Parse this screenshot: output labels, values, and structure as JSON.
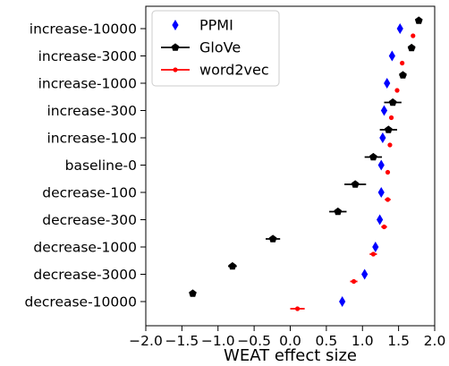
{
  "chart_data": {
    "type": "scatter",
    "xlabel": "WEAT effect size",
    "ylabel": "",
    "xlim": [
      -2.0,
      2.0
    ],
    "xticks": [
      "−2.0",
      "−1.5",
      "−1.0",
      "−0.5",
      "0.0",
      "0.5",
      "1.0",
      "1.5",
      "2.0"
    ],
    "xtick_values": [
      -2.0,
      -1.5,
      -1.0,
      -0.5,
      0.0,
      0.5,
      1.0,
      1.5,
      2.0
    ],
    "categories": [
      "increase-10000",
      "increase-3000",
      "increase-1000",
      "increase-300",
      "increase-100",
      "baseline-0",
      "decrease-100",
      "decrease-300",
      "decrease-1000",
      "decrease-3000",
      "decrease-10000"
    ],
    "legend_position": "upper-left",
    "grid": false,
    "series": [
      {
        "name": "PPMI",
        "marker": "diamond",
        "color": "#0000ff",
        "values": [
          1.52,
          1.41,
          1.34,
          1.3,
          1.28,
          1.26,
          1.26,
          1.24,
          1.18,
          1.03,
          0.72
        ],
        "errors": [
          0.0,
          0.0,
          0.0,
          0.0,
          0.0,
          0.0,
          0.0,
          0.0,
          0.0,
          0.0,
          0.0
        ]
      },
      {
        "name": "GloVe",
        "marker": "pentagon",
        "color": "#000000",
        "values": [
          1.78,
          1.68,
          1.56,
          1.42,
          1.36,
          1.15,
          0.9,
          0.66,
          -0.24,
          -0.8,
          -1.35
        ],
        "errors": [
          0.0,
          0.05,
          0.05,
          0.12,
          0.12,
          0.12,
          0.15,
          0.12,
          0.1,
          0.06,
          0.0
        ]
      },
      {
        "name": "word2vec",
        "marker": "dot",
        "color": "#ff0000",
        "values": [
          1.7,
          1.55,
          1.48,
          1.4,
          1.38,
          1.35,
          1.35,
          1.3,
          1.15,
          0.88,
          0.1
        ],
        "errors": [
          0.0,
          0.0,
          0.0,
          0.0,
          0.0,
          0.0,
          0.04,
          0.04,
          0.05,
          0.05,
          0.1
        ]
      }
    ]
  }
}
